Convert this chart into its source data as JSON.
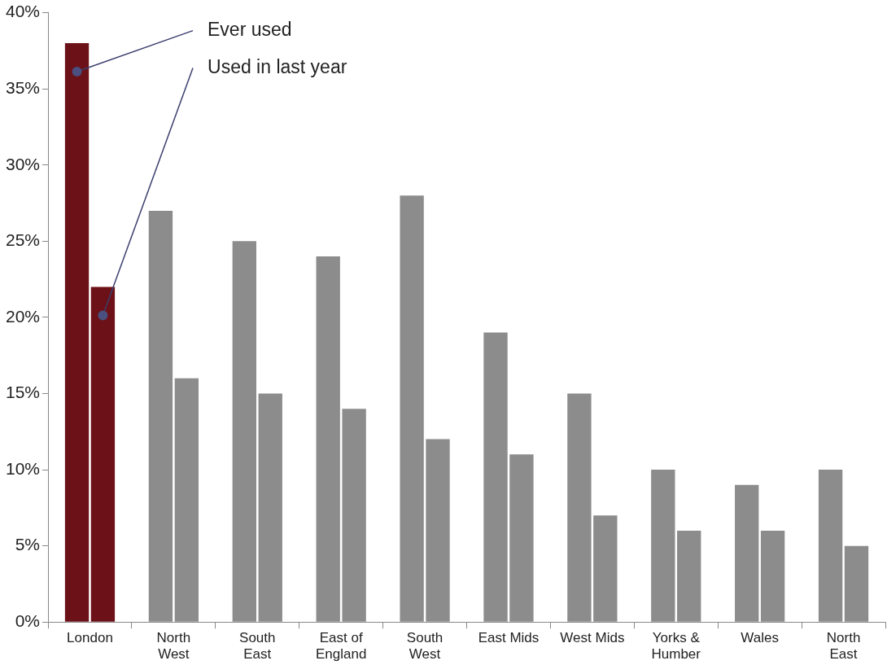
{
  "chart_data": {
    "type": "bar",
    "categories": [
      "London",
      "North\nWest",
      "South\nEast",
      "East of\nEngland",
      "South\nWest",
      "East Mids",
      "West Mids",
      "Yorks &\nHumber",
      "Wales",
      "North\nEast"
    ],
    "series": [
      {
        "name": "Ever used",
        "colors": [
          "#6b1117",
          "#8c8c8c",
          "#8c8c8c",
          "#8c8c8c",
          "#8c8c8c",
          "#8c8c8c",
          "#8c8c8c",
          "#8c8c8c",
          "#8c8c8c",
          "#8c8c8c"
        ],
        "values": [
          38,
          27,
          25,
          24,
          28,
          19,
          15,
          10,
          9,
          10
        ]
      },
      {
        "name": "Used in last year",
        "colors": [
          "#6b1117",
          "#8c8c8c",
          "#8c8c8c",
          "#8c8c8c",
          "#8c8c8c",
          "#8c8c8c",
          "#8c8c8c",
          "#8c8c8c",
          "#8c8c8c",
          "#8c8c8c"
        ],
        "values": [
          22,
          16,
          15,
          14,
          12,
          11,
          7,
          6,
          6,
          5
        ]
      }
    ],
    "ylim": [
      0,
      40
    ],
    "yticks": [
      {
        "value": 0,
        "label": "0%"
      },
      {
        "value": 5,
        "label": "5%"
      },
      {
        "value": 10,
        "label": "10%"
      },
      {
        "value": 15,
        "label": "15%"
      },
      {
        "value": 20,
        "label": "20%"
      },
      {
        "value": 25,
        "label": "25%"
      },
      {
        "value": 30,
        "label": "30%"
      },
      {
        "value": 35,
        "label": "35%"
      },
      {
        "value": 40,
        "label": "40%"
      }
    ],
    "grid": false,
    "legend": false
  }
}
